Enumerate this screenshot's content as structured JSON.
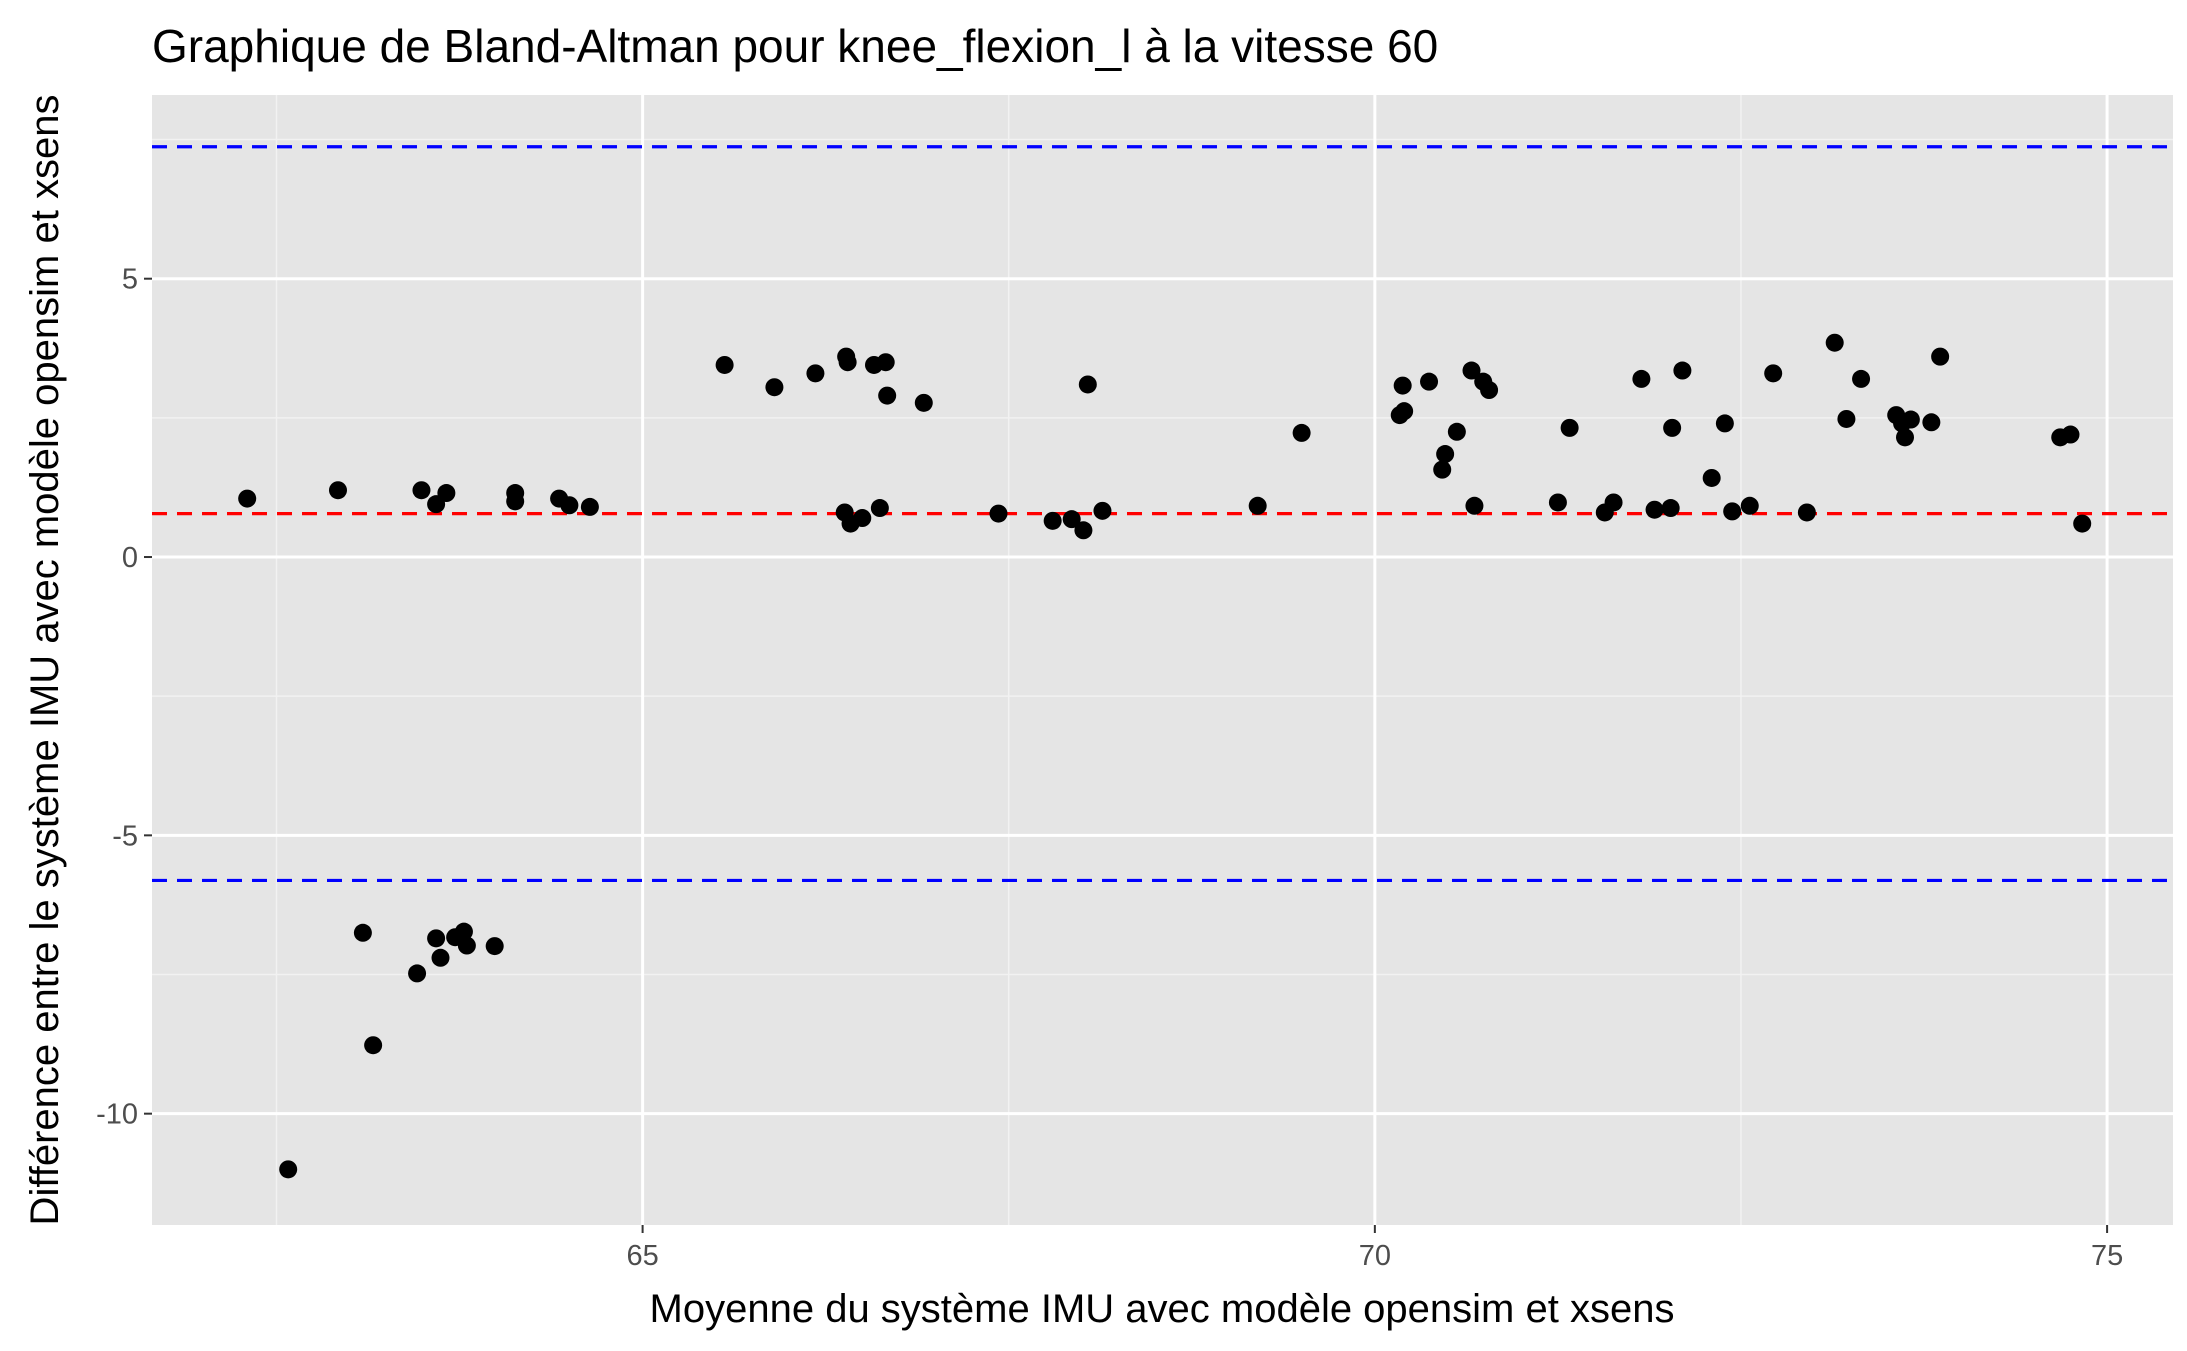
{
  "chart_data": {
    "type": "scatter",
    "title": "Graphique de Bland-Altman pour knee_flexion_l à la vitesse 60",
    "xlabel": "Moyenne du système IMU avec modèle opensim et xsens",
    "ylabel": "Différence entre le système IMU avec modèle opensim et xsens",
    "xlim": [
      61.65,
      75.45
    ],
    "ylim": [
      -12.0,
      8.3
    ],
    "x_ticks": [
      65,
      70,
      75
    ],
    "x_tick_labels": [
      "65",
      "70",
      "75"
    ],
    "y_ticks": [
      -10,
      -5,
      0,
      5
    ],
    "y_tick_labels": [
      "-10",
      "-5",
      "0",
      "5"
    ],
    "grid": true,
    "background": "#e5e5e5",
    "reference_lines": [
      {
        "name": "mean",
        "y": 0.78,
        "color": "#ff0000",
        "style": "dashed"
      },
      {
        "name": "upper",
        "y": 7.37,
        "color": "#0000ff",
        "style": "dashed"
      },
      {
        "name": "lower",
        "y": -5.81,
        "color": "#0000ff",
        "style": "dashed"
      }
    ],
    "point_color": "#000000",
    "points": [
      [
        62.3,
        1.05
      ],
      [
        62.58,
        -11.0
      ],
      [
        62.92,
        1.2
      ],
      [
        63.09,
        -6.75
      ],
      [
        63.16,
        -8.77
      ],
      [
        63.46,
        -7.48
      ],
      [
        63.49,
        1.2
      ],
      [
        63.59,
        -6.85
      ],
      [
        63.59,
        0.95
      ],
      [
        63.62,
        -7.2
      ],
      [
        63.66,
        1.15
      ],
      [
        63.72,
        -6.83
      ],
      [
        63.78,
        -6.73
      ],
      [
        63.8,
        -6.98
      ],
      [
        63.99,
        -6.99
      ],
      [
        64.13,
        1.15
      ],
      [
        64.13,
        1.0
      ],
      [
        64.43,
        1.05
      ],
      [
        64.5,
        0.93
      ],
      [
        64.64,
        0.9
      ],
      [
        65.56,
        3.45
      ],
      [
        65.9,
        3.05
      ],
      [
        66.18,
        3.3
      ],
      [
        66.39,
        3.6
      ],
      [
        66.4,
        3.5
      ],
      [
        66.38,
        0.8
      ],
      [
        66.42,
        0.6
      ],
      [
        66.5,
        0.7
      ],
      [
        66.58,
        3.45
      ],
      [
        66.62,
        0.88
      ],
      [
        66.66,
        3.5
      ],
      [
        66.67,
        2.9
      ],
      [
        66.92,
        2.77
      ],
      [
        67.43,
        0.78
      ],
      [
        67.8,
        0.65
      ],
      [
        67.93,
        0.68
      ],
      [
        68.01,
        0.48
      ],
      [
        68.04,
        3.1
      ],
      [
        68.14,
        0.83
      ],
      [
        69.2,
        0.92
      ],
      [
        69.5,
        2.23
      ],
      [
        70.17,
        2.55
      ],
      [
        70.19,
        3.08
      ],
      [
        70.2,
        2.62
      ],
      [
        70.37,
        3.15
      ],
      [
        70.46,
        1.57
      ],
      [
        70.48,
        1.85
      ],
      [
        70.56,
        2.25
      ],
      [
        70.66,
        3.35
      ],
      [
        70.68,
        0.92
      ],
      [
        70.74,
        3.15
      ],
      [
        70.78,
        3.0
      ],
      [
        71.25,
        0.98
      ],
      [
        71.33,
        2.32
      ],
      [
        71.57,
        0.8
      ],
      [
        71.63,
        0.98
      ],
      [
        71.82,
        3.2
      ],
      [
        71.91,
        0.85
      ],
      [
        72.02,
        0.88
      ],
      [
        72.03,
        2.32
      ],
      [
        72.1,
        3.35
      ],
      [
        72.3,
        1.42
      ],
      [
        72.39,
        2.4
      ],
      [
        72.44,
        0.82
      ],
      [
        72.56,
        0.92
      ],
      [
        72.72,
        3.3
      ],
      [
        72.95,
        0.8
      ],
      [
        73.14,
        3.85
      ],
      [
        73.22,
        2.48
      ],
      [
        73.32,
        3.2
      ],
      [
        73.56,
        2.55
      ],
      [
        73.6,
        2.4
      ],
      [
        73.62,
        2.15
      ],
      [
        73.66,
        2.47
      ],
      [
        73.8,
        2.42
      ],
      [
        73.86,
        3.6
      ],
      [
        74.68,
        2.15
      ],
      [
        74.75,
        2.2
      ],
      [
        74.83,
        0.6
      ]
    ]
  }
}
